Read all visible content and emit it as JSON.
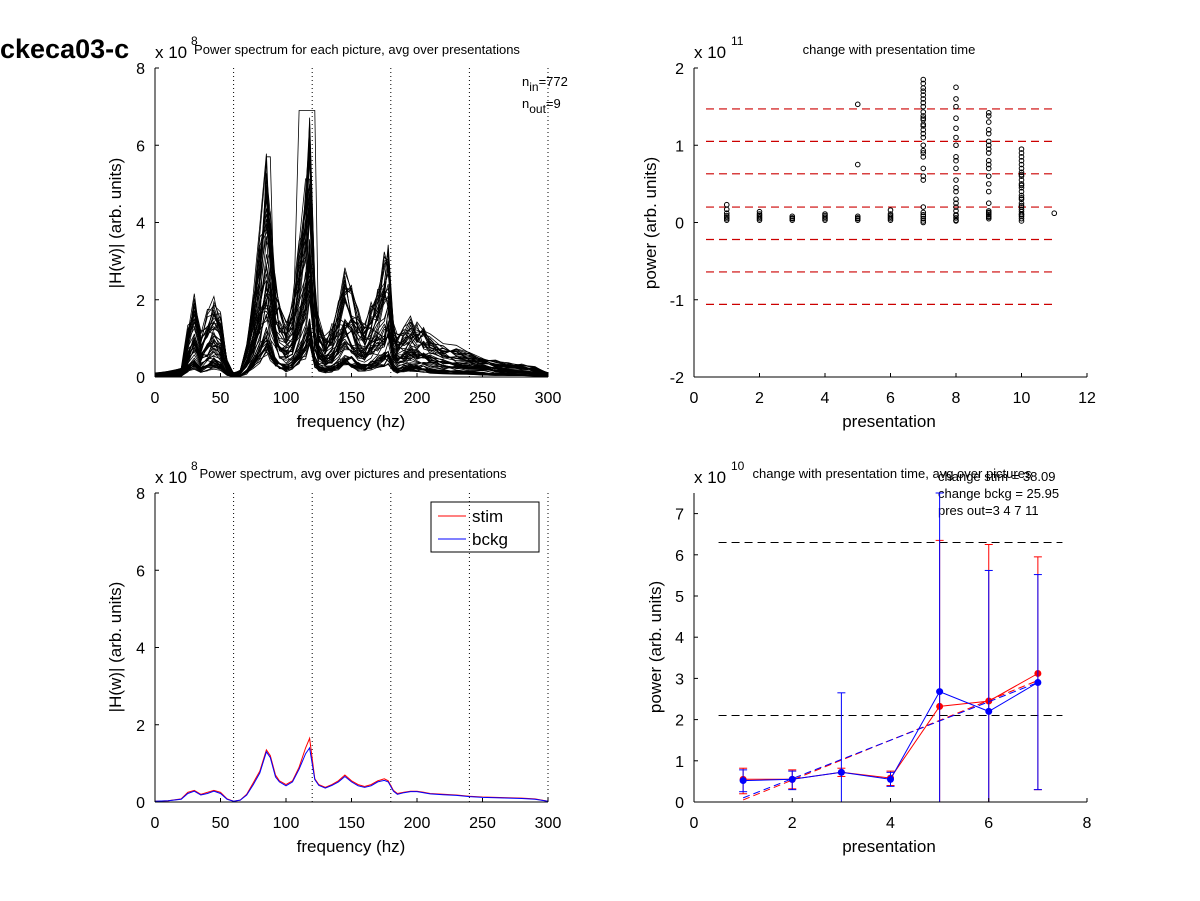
{
  "figure": {
    "title": "ckeca03-c"
  },
  "colors": {
    "stim": "#ff0000",
    "bckg": "#0000ff",
    "axis": "#000000",
    "ref_line": "#000000",
    "threshold": "#cc0000"
  },
  "chart_data": [
    {
      "id": "p1",
      "type": "line",
      "title": "Power spectrum for each picture, avg over presentations",
      "xlabel": "frequency (hz)",
      "ylabel": "|H(w)| (arb. units)",
      "exponent_base": "x 10",
      "exponent_power": "8",
      "xlim": [
        0,
        300
      ],
      "ylim": [
        0,
        8
      ],
      "x_ticks": [
        0,
        50,
        100,
        150,
        200,
        250,
        300
      ],
      "y_ticks": [
        0,
        2,
        4,
        6,
        8
      ],
      "vlines": [
        60,
        120,
        180,
        240,
        300
      ],
      "annotations": {
        "n_in_sub": "in",
        "n_in_val": "=772",
        "n_out_sub": "out",
        "n_out_val": "=9"
      },
      "n_traces": 60,
      "spectrum_shape": {
        "x": [
          0,
          10,
          20,
          25,
          30,
          35,
          40,
          45,
          50,
          55,
          60,
          65,
          70,
          75,
          80,
          85,
          88,
          92,
          95,
          100,
          105,
          110,
          115,
          118,
          122,
          125,
          130,
          135,
          140,
          145,
          150,
          155,
          160,
          165,
          170,
          175,
          178,
          182,
          185,
          190,
          195,
          200,
          205,
          210,
          220,
          230,
          240,
          250,
          260,
          270,
          280,
          290,
          300
        ],
        "y": [
          0.05,
          0.07,
          0.1,
          0.6,
          1.0,
          0.6,
          0.8,
          1.0,
          0.8,
          0.2,
          0.05,
          0.1,
          0.4,
          1.0,
          1.8,
          2.6,
          2.0,
          1.1,
          0.9,
          0.7,
          0.9,
          1.6,
          2.4,
          3.2,
          1.2,
          0.7,
          0.5,
          0.6,
          0.9,
          1.3,
          1.1,
          0.8,
          0.7,
          0.9,
          1.1,
          1.4,
          1.6,
          0.7,
          0.5,
          0.6,
          0.7,
          0.7,
          0.6,
          0.5,
          0.4,
          0.35,
          0.3,
          0.25,
          0.2,
          0.18,
          0.15,
          0.12,
          0.05
        ]
      }
    },
    {
      "id": "p2",
      "type": "scatter",
      "title": "change with presentation time",
      "xlabel": "presentation",
      "ylabel": "power (arb. units)",
      "exponent_base": "x 10",
      "exponent_power": "11",
      "xlim": [
        0,
        12
      ],
      "ylim": [
        -2,
        2
      ],
      "x_ticks": [
        0,
        2,
        4,
        6,
        8,
        10,
        12
      ],
      "y_ticks": [
        -2,
        -1,
        0,
        1,
        2
      ],
      "hlines": [
        1.47,
        1.05,
        0.63,
        0.2,
        -0.22,
        -0.64,
        -1.06
      ],
      "points": {
        "x": [
          1,
          1,
          1,
          1,
          1,
          1,
          1,
          2,
          2,
          2,
          2,
          2,
          2,
          3,
          3,
          3,
          3,
          4,
          4,
          4,
          4,
          4,
          5,
          5,
          5,
          5,
          5,
          5,
          6,
          6,
          6,
          6,
          6,
          6,
          7,
          7,
          7,
          7,
          7,
          7,
          7,
          7,
          7,
          7,
          7,
          7,
          7,
          7,
          7,
          7,
          7,
          7,
          7,
          7,
          7,
          7,
          7,
          7,
          7,
          7,
          7,
          7,
          7,
          7,
          7,
          8,
          8,
          8,
          8,
          8,
          8,
          8,
          8,
          8,
          8,
          8,
          8,
          8,
          8,
          8,
          8,
          8,
          8,
          8,
          8,
          8,
          8,
          9,
          9,
          9,
          9,
          9,
          9,
          9,
          9,
          9,
          9,
          9,
          9,
          9,
          9,
          9,
          9,
          9,
          9,
          9,
          9,
          9,
          9,
          9,
          10,
          10,
          10,
          10,
          10,
          10,
          10,
          10,
          10,
          10,
          10,
          10,
          10,
          10,
          10,
          10,
          10,
          10,
          10,
          10,
          10,
          10,
          10,
          10,
          10,
          10,
          10,
          11
        ],
        "y": [
          0.03,
          0.05,
          0.07,
          0.09,
          0.12,
          0.17,
          0.23,
          0.03,
          0.05,
          0.07,
          0.09,
          0.11,
          0.14,
          0.03,
          0.05,
          0.06,
          0.08,
          0.03,
          0.05,
          0.07,
          0.09,
          0.11,
          0.03,
          0.05,
          0.06,
          0.08,
          0.75,
          1.53,
          0.03,
          0.05,
          0.07,
          0.09,
          0.11,
          0.16,
          0.0,
          0.05,
          0.1,
          0.2,
          0.55,
          0.7,
          0.85,
          0.93,
          1.2,
          1.27,
          1.33,
          1.38,
          1.43,
          1.5,
          1.55,
          1.6,
          1.65,
          1.7,
          1.74,
          1.8,
          1.85,
          0.02,
          0.08,
          0.13,
          0.6,
          0.9,
          1.0,
          1.1,
          1.15,
          1.25,
          1.35,
          0.02,
          0.06,
          0.1,
          0.15,
          0.2,
          0.25,
          0.3,
          0.4,
          0.45,
          0.55,
          0.7,
          0.8,
          0.85,
          1.0,
          1.1,
          1.22,
          1.35,
          1.5,
          1.6,
          1.75,
          0.03,
          0.09,
          0.05,
          0.08,
          0.1,
          0.12,
          0.15,
          0.4,
          0.5,
          0.6,
          0.7,
          0.75,
          0.8,
          0.9,
          0.95,
          1.0,
          1.05,
          1.15,
          1.2,
          1.3,
          1.38,
          1.42,
          0.25,
          0.07,
          0.13,
          0.02,
          0.05,
          0.08,
          0.11,
          0.14,
          0.17,
          0.2,
          0.25,
          0.3,
          0.35,
          0.4,
          0.45,
          0.5,
          0.55,
          0.6,
          0.65,
          0.7,
          0.75,
          0.8,
          0.85,
          0.9,
          0.95,
          0.1,
          0.22,
          0.32,
          0.48,
          0.62,
          0.12
        ]
      }
    },
    {
      "id": "p3",
      "type": "line",
      "title": "Power spectrum, avg over pictures and presentations",
      "xlabel": "frequency (hz)",
      "ylabel": "|H(w)| (arb. units)",
      "exponent_base": "x 10",
      "exponent_power": "8",
      "xlim": [
        0,
        300
      ],
      "ylim": [
        0,
        8
      ],
      "x_ticks": [
        0,
        50,
        100,
        150,
        200,
        250,
        300
      ],
      "y_ticks": [
        0,
        2,
        4,
        6,
        8
      ],
      "vlines": [
        60,
        120,
        180,
        240,
        300
      ],
      "legend_position": "top-right",
      "x": [
        0,
        10,
        20,
        25,
        30,
        35,
        40,
        45,
        50,
        55,
        60,
        65,
        70,
        75,
        80,
        85,
        88,
        92,
        95,
        100,
        105,
        110,
        115,
        118,
        122,
        125,
        130,
        135,
        140,
        145,
        150,
        155,
        160,
        165,
        170,
        175,
        178,
        182,
        185,
        190,
        195,
        200,
        205,
        210,
        220,
        230,
        240,
        250,
        260,
        270,
        280,
        290,
        300
      ],
      "series": [
        {
          "name": "stim",
          "color": "#ff0000",
          "values": [
            0.02,
            0.03,
            0.08,
            0.25,
            0.3,
            0.2,
            0.25,
            0.3,
            0.25,
            0.08,
            0.02,
            0.05,
            0.2,
            0.5,
            0.8,
            1.35,
            1.2,
            0.7,
            0.55,
            0.45,
            0.55,
            0.9,
            1.4,
            1.65,
            0.6,
            0.45,
            0.38,
            0.45,
            0.55,
            0.7,
            0.55,
            0.45,
            0.4,
            0.45,
            0.55,
            0.6,
            0.55,
            0.3,
            0.22,
            0.25,
            0.28,
            0.28,
            0.25,
            0.22,
            0.2,
            0.18,
            0.15,
            0.13,
            0.12,
            0.11,
            0.1,
            0.08,
            0.02
          ]
        },
        {
          "name": "bckg",
          "color": "#0000ff",
          "values": [
            0.02,
            0.03,
            0.07,
            0.22,
            0.28,
            0.18,
            0.22,
            0.28,
            0.22,
            0.07,
            0.02,
            0.05,
            0.18,
            0.45,
            0.75,
            1.3,
            1.15,
            0.65,
            0.52,
            0.42,
            0.52,
            0.85,
            1.25,
            1.4,
            0.58,
            0.43,
            0.36,
            0.43,
            0.52,
            0.66,
            0.52,
            0.42,
            0.38,
            0.42,
            0.52,
            0.56,
            0.52,
            0.28,
            0.2,
            0.24,
            0.27,
            0.27,
            0.24,
            0.21,
            0.19,
            0.17,
            0.14,
            0.12,
            0.11,
            0.1,
            0.09,
            0.07,
            0.02
          ]
        }
      ]
    },
    {
      "id": "p4",
      "type": "line",
      "title": "change with presentation time, avg over pictures",
      "xlabel": "presentation",
      "ylabel": "power (arb. units)",
      "exponent_base": "x 10",
      "exponent_power": "10",
      "xlim": [
        0,
        8
      ],
      "ylim": [
        0,
        7.5
      ],
      "x_ticks": [
        0,
        2,
        4,
        6,
        8
      ],
      "y_ticks": [
        0,
        1,
        2,
        3,
        4,
        5,
        6,
        7
      ],
      "annotations": [
        "change stim = 38.09",
        "change bckg = 25.95",
        "pres out=3 4 7 11"
      ],
      "hlines": [
        6.3,
        2.1
      ],
      "x": [
        1,
        2,
        3,
        4,
        5,
        6,
        7
      ],
      "series": [
        {
          "name": "stim",
          "color": "#ff0000",
          "values": [
            0.55,
            0.55,
            0.72,
            0.58,
            2.32,
            2.45,
            3.12
          ],
          "err_low": [
            0.2,
            0.32,
            0.62,
            0.4,
            0.0,
            0.0,
            0.3
          ],
          "err_high": [
            0.82,
            0.78,
            0.82,
            0.75,
            6.35,
            6.25,
            5.95
          ],
          "fit": [
            0.0,
            4.0
          ]
        },
        {
          "name": "bckg",
          "color": "#0000ff",
          "values": [
            0.52,
            0.55,
            0.72,
            0.55,
            2.68,
            2.2,
            2.9
          ],
          "err_low": [
            0.25,
            0.3,
            0.0,
            0.38,
            0.0,
            0.0,
            0.3
          ],
          "err_high": [
            0.78,
            0.75,
            2.65,
            0.72,
            7.5,
            5.62,
            5.52
          ],
          "fit": [
            0.0,
            4.0
          ]
        }
      ]
    }
  ]
}
